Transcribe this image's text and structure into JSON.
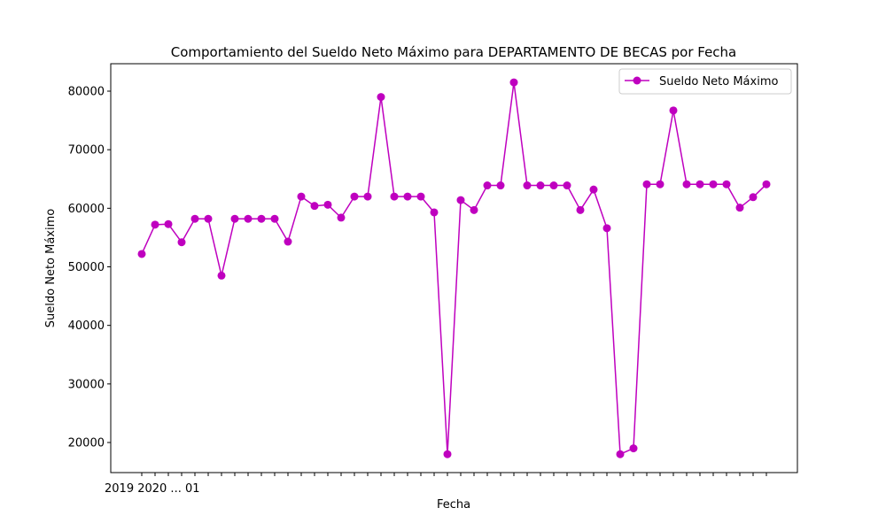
{
  "chart_data": {
    "type": "line",
    "title": "Comportamiento del Sueldo Neto Máximo para DEPARTAMENTO DE BECAS por Fecha",
    "xlabel": "Fecha",
    "ylabel": "Sueldo Neto Máximo",
    "ylim": [
      15000,
      85000
    ],
    "yticks": [
      20000,
      30000,
      40000,
      50000,
      60000,
      70000,
      80000
    ],
    "x_tick_text": "2019 2020 ... 01",
    "legend_position": "top-right",
    "grid": false,
    "series": [
      {
        "name": "Sueldo Neto Máximo",
        "color": "#bf00bf",
        "values": [
          52200,
          57200,
          57300,
          54200,
          58200,
          58200,
          48500,
          58200,
          58200,
          58200,
          58200,
          54300,
          62000,
          60400,
          60600,
          58400,
          62000,
          62000,
          79000,
          62000,
          62000,
          62000,
          59300,
          18000,
          61400,
          59700,
          63900,
          63900,
          81500,
          63900,
          63900,
          63900,
          63900,
          59700,
          63200,
          56600,
          18000,
          19000,
          64100,
          64100,
          76700,
          64100,
          64100,
          64100,
          64100,
          60100,
          61900,
          64100
        ]
      }
    ]
  }
}
